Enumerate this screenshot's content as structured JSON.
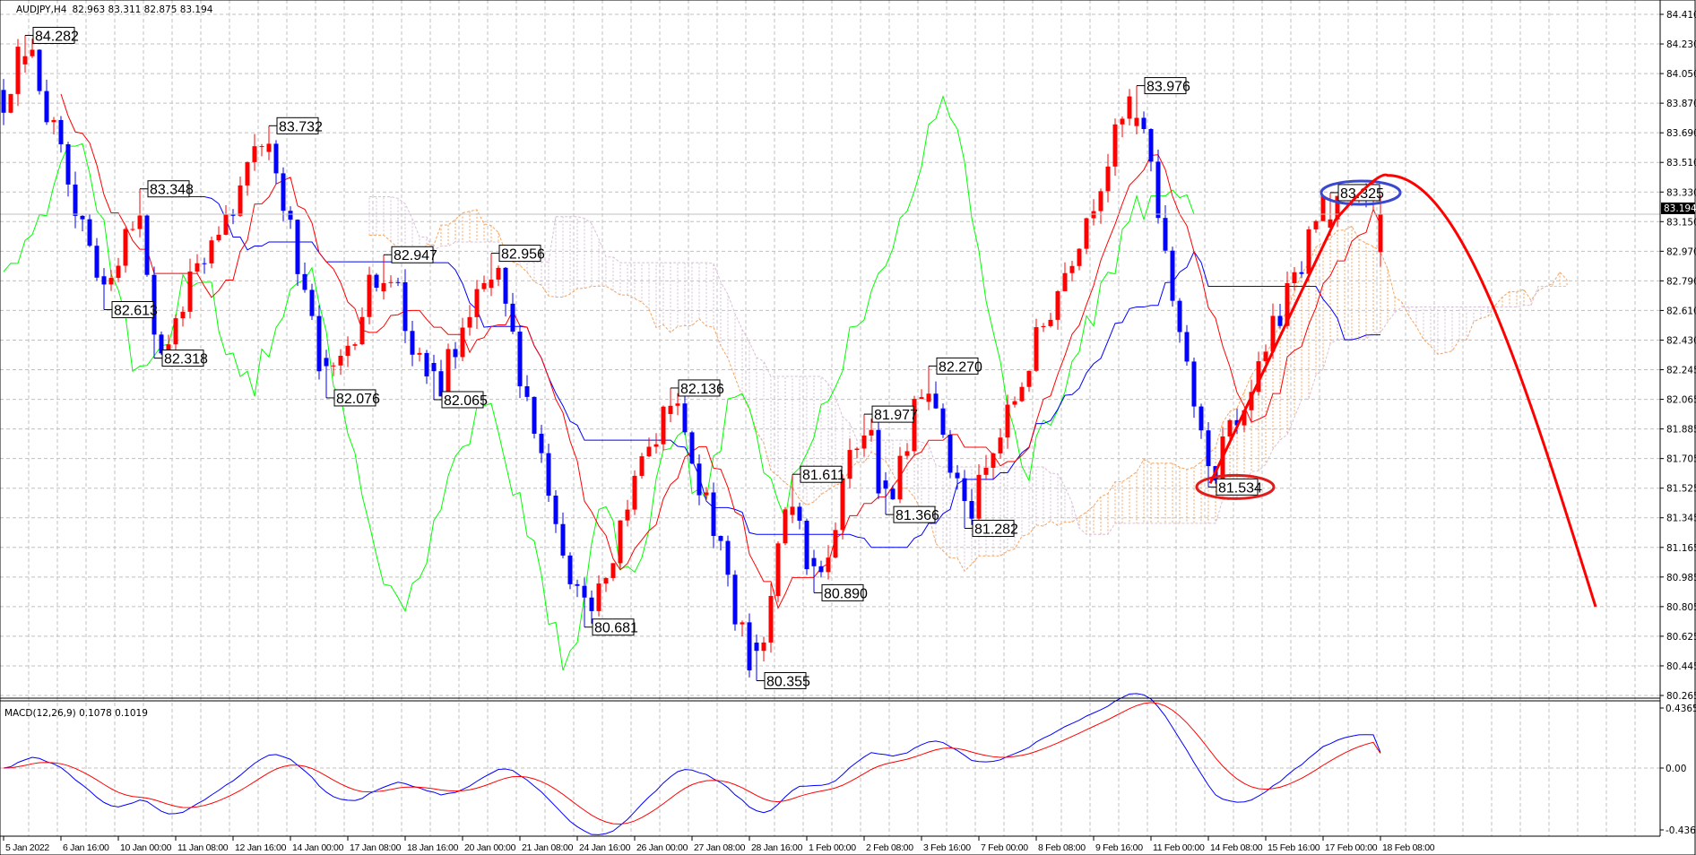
{
  "header": {
    "symbol": "AUDJPY,H4",
    "ohlc_text": "82.963 83.311 82.875 83.194"
  },
  "macd_header": "MACD(12,26,9) 0.1078 0.1019",
  "colors": {
    "bull_candle": "#ff0000",
    "bear_candle": "#0000ff",
    "tenkan": "#ff0000",
    "kijun": "#0000ff",
    "chikou": "#00ff00",
    "cloud_bull": "#f4a460",
    "cloud_bear": "#d8bfd8",
    "macd_main": "#0000ff",
    "macd_signal": "#ff0000",
    "grid": "#c0c0c0",
    "annotation_arc": "#ff0000",
    "ellipse_high": "#3a48d0",
    "ellipse_low": "#e21b1b"
  },
  "chart_data": [
    {
      "type": "candlestick",
      "title": "AUDJPY,H4",
      "last_bar": {
        "open": 82.963,
        "high": 83.311,
        "low": 82.875,
        "close": 83.194
      },
      "current_price": "83.194",
      "ylim": [
        80.265,
        84.41
      ],
      "y_ticks": [
        "84.410",
        "84.230",
        "84.050",
        "83.870",
        "83.690",
        "83.510",
        "83.330",
        "83.150",
        "82.970",
        "82.790",
        "82.610",
        "82.430",
        "82.245",
        "82.065",
        "81.885",
        "81.705",
        "81.525",
        "81.345",
        "81.165",
        "80.985",
        "80.805",
        "80.625",
        "80.445",
        "80.265"
      ],
      "x_ticks": [
        "5 Jan 2022",
        "6 Jan 16:00",
        "10 Jan 00:00",
        "11 Jan 08:00",
        "12 Jan 16:00",
        "14 Jan 00:00",
        "17 Jan 08:00",
        "18 Jan 16:00",
        "20 Jan 00:00",
        "21 Jan 08:00",
        "24 Jan 16:00",
        "26 Jan 00:00",
        "27 Jan 08:00",
        "28 Jan 16:00",
        "1 Feb 00:00",
        "2 Feb 08:00",
        "3 Feb 16:00",
        "7 Feb 00:00",
        "8 Feb 08:00",
        "9 Feb 16:00",
        "11 Feb 00:00",
        "14 Feb 08:00",
        "15 Feb 16:00",
        "17 Feb 00:00",
        "18 Feb 08:00"
      ],
      "bars_per_x_tick": 8,
      "bar_count": 193,
      "start_price": 83.9,
      "swing_points": [
        {
          "bar": 3,
          "price": 84.282,
          "kind": "high",
          "label": "84.282"
        },
        {
          "bar": 14,
          "price": 82.613,
          "kind": "low",
          "label": "82.613"
        },
        {
          "bar": 19,
          "price": 83.348,
          "kind": "high",
          "label": "83.348"
        },
        {
          "bar": 21,
          "price": 82.318,
          "kind": "low",
          "label": "82.318"
        },
        {
          "bar": 37,
          "price": 83.732,
          "kind": "high",
          "label": "83.732"
        },
        {
          "bar": 45,
          "price": 82.076,
          "kind": "low",
          "label": "82.076"
        },
        {
          "bar": 53,
          "price": 82.947,
          "kind": "high",
          "label": "82.947"
        },
        {
          "bar": 60,
          "price": 82.065,
          "kind": "low",
          "label": "82.065"
        },
        {
          "bar": 68,
          "price": 82.956,
          "kind": "high",
          "label": "82.956"
        },
        {
          "bar": 81,
          "price": 80.681,
          "kind": "low",
          "label": "80.681"
        },
        {
          "bar": 93,
          "price": 82.136,
          "kind": "high",
          "label": "82.136"
        },
        {
          "bar": 105,
          "price": 80.355,
          "kind": "low",
          "label": "80.355"
        },
        {
          "bar": 110,
          "price": 81.611,
          "kind": "high",
          "label": "81.611"
        },
        {
          "bar": 113,
          "price": 80.89,
          "kind": "low",
          "label": "80.890"
        },
        {
          "bar": 120,
          "price": 81.977,
          "kind": "high",
          "label": "81.977"
        },
        {
          "bar": 123,
          "price": 81.366,
          "kind": "low",
          "label": "81.366"
        },
        {
          "bar": 129,
          "price": 82.27,
          "kind": "high",
          "label": "82.270"
        },
        {
          "bar": 134,
          "price": 81.282,
          "kind": "low",
          "label": "81.282"
        },
        {
          "bar": 158,
          "price": 83.976,
          "kind": "high",
          "label": "83.976"
        },
        {
          "bar": 168,
          "price": 81.534,
          "kind": "low",
          "label": "81.534"
        },
        {
          "bar": 185,
          "price": 83.325,
          "kind": "high",
          "label": "83.325"
        }
      ],
      "indicators": [
        "Ichimoku (Tenkan 9, Kijun 26, Senkou B 52)"
      ],
      "annotations": [
        {
          "kind": "ellipse",
          "around": "83.325"
        },
        {
          "kind": "ellipse",
          "around": "81.534"
        },
        {
          "kind": "forecast-arc",
          "from_price": 81.534,
          "peak_price": 83.43,
          "to_price": 80.805
        }
      ]
    },
    {
      "type": "line",
      "title": "MACD(12,26,9)",
      "series": [
        {
          "name": "MACD",
          "last": 0.1078
        },
        {
          "name": "Signal",
          "last": 0.1019
        }
      ],
      "ylim": [
        -0.4362,
        0.4365
      ],
      "y_ticks": [
        "0.4365",
        "0.00",
        "-0.4362"
      ]
    }
  ]
}
